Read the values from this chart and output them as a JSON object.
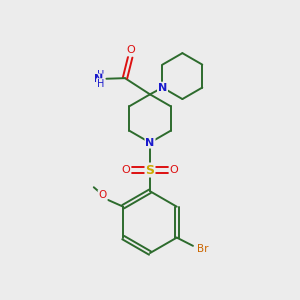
{
  "background_color": "#ececec",
  "bond_color": "#2d6b2d",
  "atom_colors": {
    "N": "#1a1acc",
    "O": "#dd1111",
    "S": "#ccaa00",
    "Br": "#cc6600",
    "C": "#000000"
  },
  "figsize": [
    3.0,
    3.0
  ],
  "dpi": 100
}
